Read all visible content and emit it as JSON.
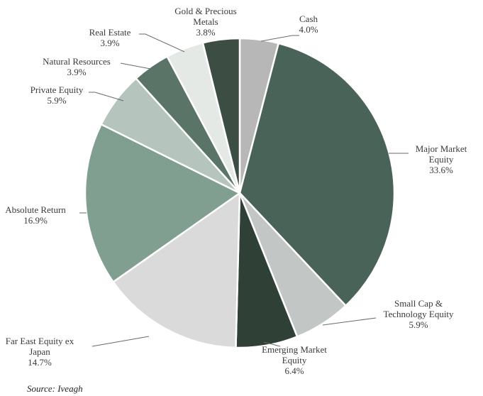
{
  "chart_data": {
    "type": "pie",
    "title": "",
    "start_angle_deg": 0,
    "direction": "clockwise",
    "slices": [
      {
        "lines": [
          "Cash"
        ],
        "pct_label": "4.0%",
        "value": 4.0,
        "color": "#b7b7b7"
      },
      {
        "lines": [
          "Major Market",
          "Equity"
        ],
        "pct_label": "33.6%",
        "value": 33.6,
        "color": "#4a6358"
      },
      {
        "lines": [
          "Small Cap &",
          "Technology Equity"
        ],
        "pct_label": "5.9%",
        "value": 5.9,
        "color": "#c2c6c4"
      },
      {
        "lines": [
          "Emerging Market",
          "Equity"
        ],
        "pct_label": "6.4%",
        "value": 6.4,
        "color": "#2f4037"
      },
      {
        "lines": [
          "Far East Equity ex",
          "Japan"
        ],
        "pct_label": "14.7%",
        "value": 14.7,
        "color": "#dadada"
      },
      {
        "lines": [
          "Absolute Return"
        ],
        "pct_label": "16.9%",
        "value": 16.9,
        "color": "#809f90"
      },
      {
        "lines": [
          "Private Equity"
        ],
        "pct_label": "5.9%",
        "value": 5.9,
        "color": "#b5c4bc"
      },
      {
        "lines": [
          "Natural Resources"
        ],
        "pct_label": "3.9%",
        "value": 3.9,
        "color": "#5a7568"
      },
      {
        "lines": [
          "Real Estate"
        ],
        "pct_label": "3.9%",
        "value": 3.9,
        "color": "#e4e9e6"
      },
      {
        "lines": [
          "Gold & Precious",
          "Metals"
        ],
        "pct_label": "3.8%",
        "value": 3.8,
        "color": "#3c4e44"
      }
    ]
  },
  "source": "Source: Iveagh"
}
